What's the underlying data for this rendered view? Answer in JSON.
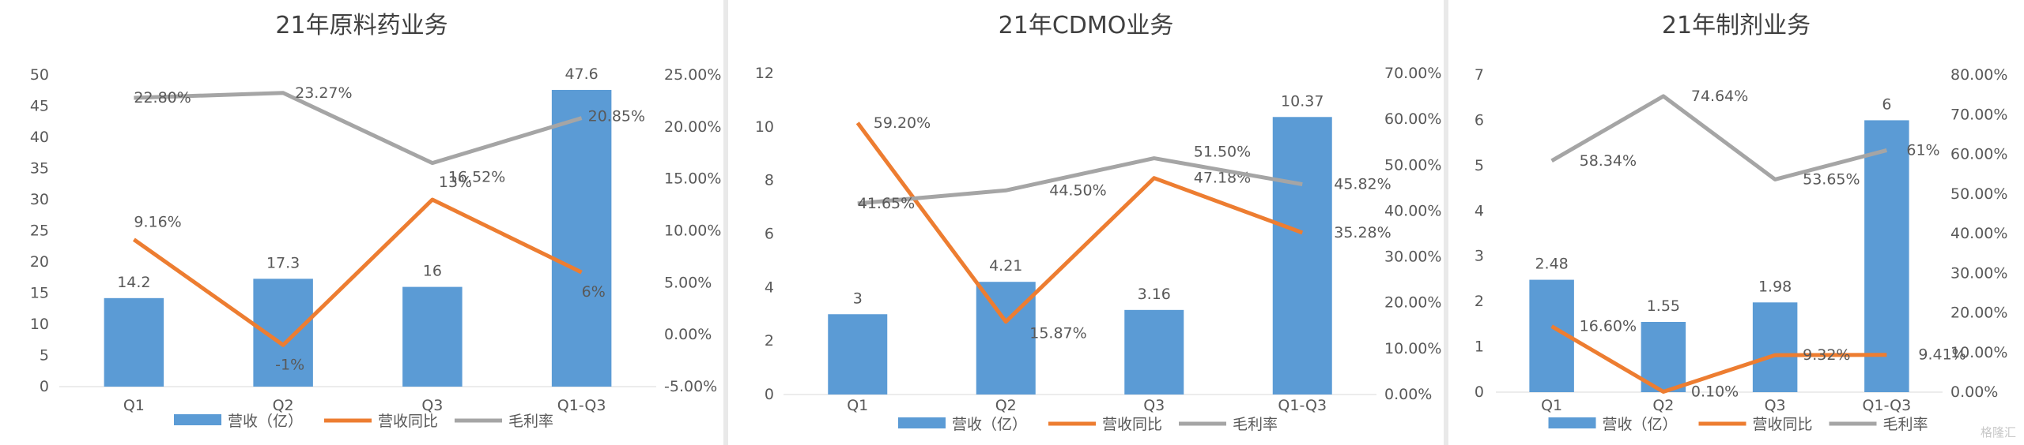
{
  "colors": {
    "bar": "#5b9bd5",
    "growth": "#ed7d31",
    "margin": "#a5a5a5",
    "axis_text": "#595959",
    "title": "#404040",
    "grid": "#d9d9d9"
  },
  "legend": {
    "bar": "营收（亿）",
    "growth": "营收同比",
    "margin": "毛利率"
  },
  "watermark": "格隆汇",
  "chart_data": [
    {
      "type": "bar+line",
      "title": "21年原料药业务",
      "categories": [
        "Q1",
        "Q2",
        "Q3",
        "Q1-Q3"
      ],
      "bars": {
        "name": "营收（亿）",
        "values": [
          14.2,
          17.3,
          16,
          47.6
        ],
        "labels": [
          "14.2",
          "17.3",
          "16",
          "47.6"
        ]
      },
      "lines": [
        {
          "name": "营收同比",
          "values": [
            9.16,
            -1,
            13,
            6
          ],
          "labels": [
            "9.16%",
            "-1%",
            "13%",
            "6%"
          ]
        },
        {
          "name": "毛利率",
          "values": [
            22.8,
            23.27,
            16.52,
            20.85
          ],
          "labels": [
            "22.80%",
            "23.27%",
            "16.52%",
            "20.85%"
          ]
        }
      ],
      "y_left": {
        "min": 0,
        "max": 50,
        "step": 5,
        "ticks": [
          "0",
          "5",
          "10",
          "15",
          "20",
          "25",
          "30",
          "35",
          "40",
          "45",
          "50"
        ]
      },
      "y_right": {
        "min": -5,
        "max": 25,
        "step": 5,
        "ticks": [
          "-5.00%",
          "0.00%",
          "5.00%",
          "10.00%",
          "15.00%",
          "20.00%",
          "25.00%"
        ]
      },
      "legend_position": "bottom"
    },
    {
      "type": "bar+line",
      "title": "21年CDMO业务",
      "categories": [
        "Q1",
        "Q2",
        "Q3",
        "Q1-Q3"
      ],
      "bars": {
        "name": "营收（亿）",
        "values": [
          3,
          4.21,
          3.16,
          10.37
        ],
        "labels": [
          "3",
          "4.21",
          "3.16",
          "10.37"
        ]
      },
      "lines": [
        {
          "name": "营收同比",
          "values": [
            59.2,
            15.87,
            47.18,
            35.28
          ],
          "labels": [
            "59.20%",
            "15.87%",
            "47.18%",
            "35.28%"
          ]
        },
        {
          "name": "毛利率",
          "values": [
            41.65,
            44.5,
            51.5,
            45.82
          ],
          "labels": [
            "41.65%",
            "44.50%",
            "51.50%",
            "45.82%"
          ]
        }
      ],
      "y_left": {
        "min": 0,
        "max": 12,
        "step": 2,
        "ticks": [
          "0",
          "2",
          "4",
          "6",
          "8",
          "10",
          "12"
        ]
      },
      "y_right": {
        "min": 0,
        "max": 70,
        "step": 10,
        "ticks": [
          "0.00%",
          "10.00%",
          "20.00%",
          "30.00%",
          "40.00%",
          "50.00%",
          "60.00%",
          "70.00%"
        ]
      },
      "legend_position": "bottom"
    },
    {
      "type": "bar+line",
      "title": "21年制剂业务",
      "categories": [
        "Q1",
        "Q2",
        "Q3",
        "Q1-Q3"
      ],
      "bars": {
        "name": "营收（亿）",
        "values": [
          2.48,
          1.55,
          1.98,
          6
        ],
        "labels": [
          "2.48",
          "1.55",
          "1.98",
          "6"
        ]
      },
      "lines": [
        {
          "name": "营收同比",
          "values": [
            16.6,
            0.1,
            9.32,
            9.41
          ],
          "labels": [
            "16.60%",
            "0.10%",
            "9.32%",
            "9.41%"
          ]
        },
        {
          "name": "毛利率",
          "values": [
            58.34,
            74.64,
            53.65,
            61
          ],
          "labels": [
            "58.34%",
            "74.64%",
            "53.65%",
            "61%"
          ]
        }
      ],
      "y_left": {
        "min": 0,
        "max": 7,
        "step": 1,
        "ticks": [
          "0",
          "1",
          "2",
          "3",
          "4",
          "5",
          "6",
          "7"
        ]
      },
      "y_right": {
        "min": 0,
        "max": 80,
        "step": 10,
        "ticks": [
          "0.00%",
          "10.00%",
          "20.00%",
          "30.00%",
          "40.00%",
          "50.00%",
          "60.00%",
          "70.00%",
          "80.00%"
        ]
      },
      "legend_position": "bottom"
    }
  ]
}
